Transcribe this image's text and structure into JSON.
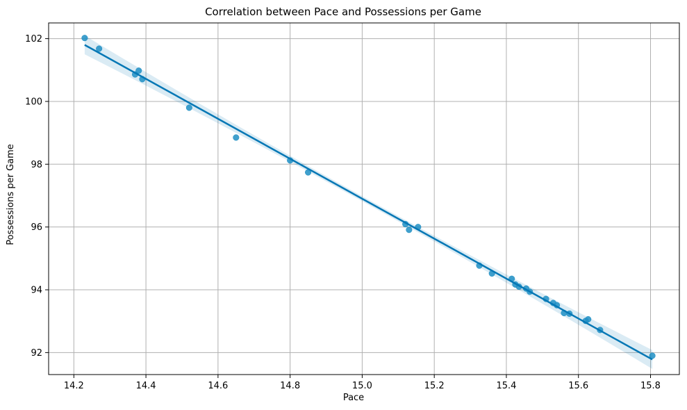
{
  "chart_data": {
    "type": "scatter",
    "title": "Correlation between Pace and Possessions per Game",
    "xlabel": "Pace",
    "ylabel": "Possessions per Game",
    "xlim": [
      14.13,
      15.88
    ],
    "ylim": [
      91.3,
      102.5
    ],
    "xticks": [
      "14.2",
      "14.4",
      "14.6",
      "14.8",
      "15.0",
      "15.2",
      "15.4",
      "15.6",
      "15.8"
    ],
    "yticks": [
      "92",
      "94",
      "96",
      "98",
      "100",
      "102"
    ],
    "grid": true,
    "point_color": "#1f8fc4",
    "line_color": "#0577b5",
    "points": [
      [
        14.23,
        102.02
      ],
      [
        14.27,
        101.68
      ],
      [
        14.37,
        100.86
      ],
      [
        14.38,
        100.98
      ],
      [
        14.39,
        100.71
      ],
      [
        14.52,
        99.8
      ],
      [
        14.65,
        98.85
      ],
      [
        14.8,
        98.12
      ],
      [
        14.85,
        97.74
      ],
      [
        15.12,
        96.09
      ],
      [
        15.13,
        95.91
      ],
      [
        15.155,
        96.0
      ],
      [
        15.325,
        94.77
      ],
      [
        15.36,
        94.52
      ],
      [
        15.415,
        94.35
      ],
      [
        15.425,
        94.17
      ],
      [
        15.435,
        94.1
      ],
      [
        15.455,
        94.04
      ],
      [
        15.465,
        93.94
      ],
      [
        15.51,
        93.71
      ],
      [
        15.53,
        93.58
      ],
      [
        15.54,
        93.51
      ],
      [
        15.56,
        93.26
      ],
      [
        15.575,
        93.24
      ],
      [
        15.62,
        93.01
      ],
      [
        15.627,
        93.06
      ],
      [
        15.66,
        92.72
      ],
      [
        15.805,
        91.9
      ]
    ],
    "regression": {
      "x": [
        14.23,
        15.805
      ],
      "y": [
        101.8,
        91.78
      ]
    }
  }
}
